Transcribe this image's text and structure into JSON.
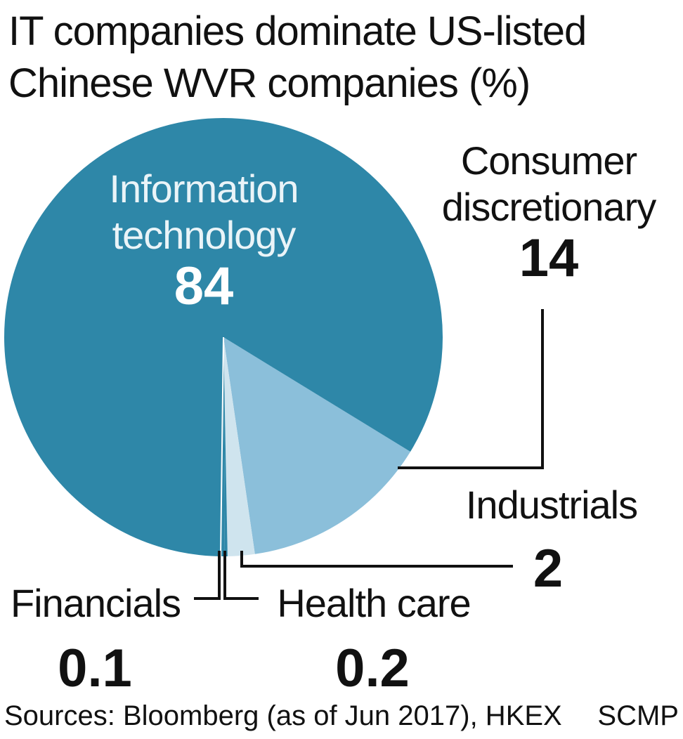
{
  "chart_data": {
    "type": "pie",
    "title_lines": [
      "IT companies dominate US-listed",
      "Chinese WVR companies (%)"
    ],
    "slices": [
      {
        "label_lines": [
          "Information",
          "technology"
        ],
        "value": 84,
        "value_text": "84",
        "color": "#2e87a8"
      },
      {
        "label_lines": [
          "Consumer",
          "discretionary"
        ],
        "value": 14,
        "value_text": "14",
        "color": "#8bbfda"
      },
      {
        "label_lines": [
          "Industrials"
        ],
        "value": 2,
        "value_text": "2",
        "color": "#cfe4ee"
      },
      {
        "label_lines": [
          "Health care"
        ],
        "value": 0.2,
        "value_text": "0.2",
        "color": "#2e87a8"
      },
      {
        "label_lines": [
          "Financials"
        ],
        "value": 0.1,
        "value_text": "0.1",
        "color": "#2e87a8"
      }
    ],
    "source": "Sources: Bloomberg (as of Jun 2017), HKEX",
    "credit": "SCMP"
  },
  "colors": {
    "leader": "#111111",
    "value_on_dark": "#ffffff",
    "label_on_dark": "#eaf4f8"
  }
}
